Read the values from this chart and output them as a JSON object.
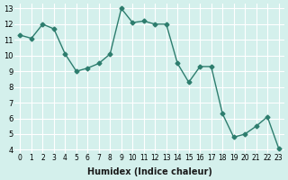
{
  "x": [
    0,
    1,
    2,
    3,
    4,
    5,
    6,
    7,
    8,
    9,
    10,
    11,
    12,
    13,
    14,
    15,
    16,
    17,
    18,
    19,
    20,
    21,
    22,
    23
  ],
  "y": [
    11.3,
    11.1,
    12.0,
    11.7,
    10.1,
    9.0,
    9.2,
    9.5,
    10.1,
    13.0,
    12.1,
    12.2,
    12.0,
    12.0,
    9.5,
    8.3,
    9.3,
    9.3,
    6.3,
    4.8,
    5.0,
    5.5,
    6.1,
    4.1
  ],
  "xlabel": "Humidex (Indice chaleur)",
  "ylabel": "",
  "ylim_min": 3.8,
  "ylim_max": 13.3,
  "xlim_min": -0.5,
  "xlim_max": 23.5,
  "line_color": "#2d7d6e",
  "marker_color": "#2d7d6e",
  "bg_color": "#d4f0ec",
  "grid_color": "#ffffff",
  "yticks": [
    4,
    5,
    6,
    7,
    8,
    9,
    10,
    11,
    12,
    13
  ],
  "xticks": [
    0,
    1,
    2,
    3,
    4,
    5,
    6,
    7,
    8,
    9,
    10,
    11,
    12,
    13,
    14,
    15,
    16,
    17,
    18,
    19,
    20,
    21,
    22,
    23
  ],
  "xlabel_fontsize": 7,
  "tick_fontsize_x": 5.5,
  "tick_fontsize_y": 6.0,
  "linewidth": 1.0,
  "markersize": 2.5
}
